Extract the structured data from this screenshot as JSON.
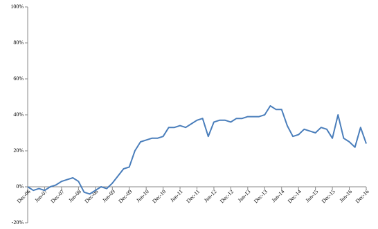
{
  "chart_data": {
    "type": "line",
    "categories": [
      "Dec-06",
      null,
      null,
      "Jun-07",
      null,
      null,
      "Dec-07",
      null,
      null,
      "Jun-08",
      null,
      null,
      "Dec-08",
      null,
      null,
      "Jun-09",
      null,
      null,
      "Dec-09",
      null,
      null,
      "Jun-10",
      null,
      null,
      "Dec-10",
      null,
      null,
      "Jun-11",
      null,
      null,
      "Dec-11",
      null,
      null,
      "Jun-12",
      null,
      null,
      "Dec-12",
      null,
      null,
      "Jun-13",
      null,
      null,
      "Dec-13",
      null,
      null,
      "Jun-14",
      null,
      null,
      "Dec-14",
      null,
      null,
      "Jun-15",
      null,
      null,
      "Dec-15",
      null,
      null,
      "Jun-16",
      null,
      null,
      "Dec-16"
    ],
    "series": [
      {
        "color": "#4a7ebb",
        "values": [
          0,
          -2,
          -1,
          -2,
          0,
          1,
          3,
          4,
          5,
          3,
          -3,
          -4,
          -2,
          0,
          -1,
          2,
          6,
          10,
          11,
          20,
          25,
          26,
          27,
          27,
          28,
          33,
          33,
          34,
          33,
          35,
          37,
          38,
          28,
          36,
          37,
          37,
          36,
          38,
          38,
          39,
          39,
          39,
          40,
          45,
          43,
          43,
          34,
          28,
          29,
          32,
          31,
          30,
          33,
          32,
          27,
          40,
          27,
          25,
          22,
          33,
          24
        ]
      }
    ],
    "ylim": [
      -20,
      100
    ],
    "yticks": [
      {
        "value": -20,
        "label": "-20%"
      },
      {
        "value": 0,
        "label": "0%"
      },
      {
        "value": 20,
        "label": "20%"
      },
      {
        "value": 40,
        "label": "40%"
      },
      {
        "value": 60,
        "label": "60%"
      },
      {
        "value": 80,
        "label": "80%"
      },
      {
        "value": 100,
        "label": "100%"
      }
    ]
  }
}
